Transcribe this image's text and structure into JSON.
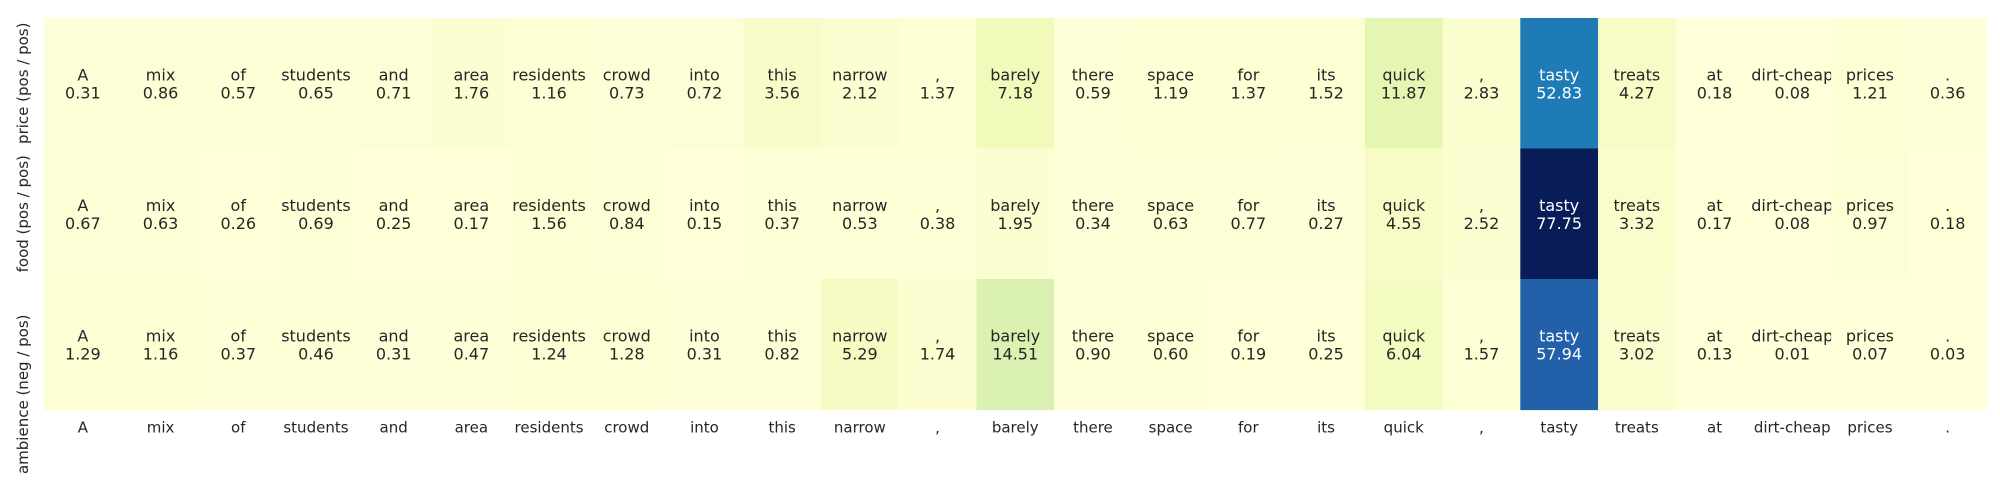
{
  "chart_data": {
    "type": "heatmap",
    "title": "",
    "colormap": "YlGnBu",
    "vmin": 0,
    "vmax": 77.75,
    "tokens": [
      "A",
      "mix",
      "of",
      "students",
      "and",
      "area",
      "residents",
      "crowd",
      "into",
      "this",
      "narrow",
      ",",
      "barely",
      "there",
      "space",
      "for",
      "its",
      "quick",
      ",",
      "tasty",
      "treats",
      "at",
      "dirt-cheap",
      "prices",
      "."
    ],
    "rows": [
      {
        "label": "price (pos / pos)",
        "values": [
          0.31,
          0.86,
          0.57,
          0.65,
          0.71,
          1.76,
          1.16,
          0.73,
          0.72,
          3.56,
          2.12,
          1.37,
          7.18,
          0.59,
          1.19,
          1.37,
          1.52,
          11.87,
          2.83,
          52.83,
          4.27,
          0.18,
          0.08,
          1.21,
          0.36
        ]
      },
      {
        "label": "food (pos / pos)",
        "values": [
          0.67,
          0.63,
          0.26,
          0.69,
          0.25,
          0.17,
          1.56,
          0.84,
          0.15,
          0.37,
          0.53,
          0.38,
          1.95,
          0.34,
          0.63,
          0.77,
          0.27,
          4.55,
          2.52,
          77.75,
          3.32,
          0.17,
          0.08,
          0.97,
          0.18
        ]
      },
      {
        "label": "ambience (neg / pos)",
        "values": [
          1.29,
          1.16,
          0.37,
          0.46,
          0.31,
          0.47,
          1.24,
          1.28,
          0.31,
          0.82,
          5.29,
          1.74,
          14.51,
          0.9,
          0.6,
          0.19,
          0.25,
          6.04,
          1.57,
          57.94,
          3.02,
          0.13,
          0.01,
          0.07,
          0.03
        ]
      }
    ]
  }
}
